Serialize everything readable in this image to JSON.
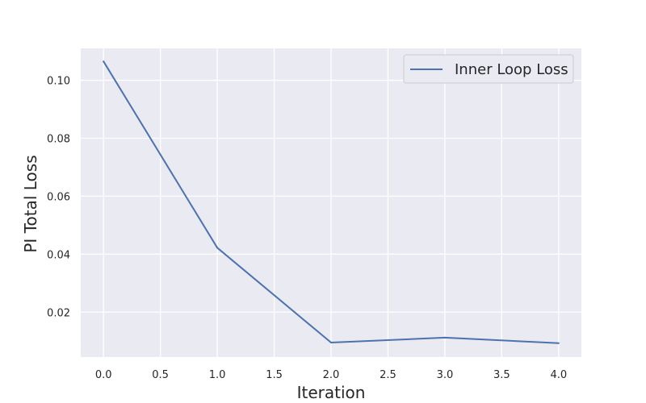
{
  "chart_data": {
    "type": "line",
    "title": "",
    "xlabel": "Iteration",
    "ylabel": "PI Total Loss",
    "xlim": [
      -0.2,
      4.2
    ],
    "ylim": [
      0.0045,
      0.111
    ],
    "x_ticks": [
      0.0,
      0.5,
      1.0,
      1.5,
      2.0,
      2.5,
      3.0,
      3.5,
      4.0
    ],
    "x_tick_labels": [
      "0.0",
      "0.5",
      "1.0",
      "1.5",
      "2.0",
      "2.5",
      "3.0",
      "3.5",
      "4.0"
    ],
    "y_ticks": [
      0.02,
      0.04,
      0.06,
      0.08,
      0.1
    ],
    "y_tick_labels": [
      "0.02",
      "0.04",
      "0.06",
      "0.08",
      "0.10"
    ],
    "grid": true,
    "legend_position": "top-right",
    "series": [
      {
        "name": "Inner Loop Loss",
        "color": "#4c72b0",
        "x": [
          0,
          1,
          2,
          3,
          4
        ],
        "y": [
          0.1065,
          0.0422,
          0.0095,
          0.0112,
          0.0093
        ]
      }
    ]
  },
  "colors": {
    "plot_background": "#eaeaf2",
    "grid": "#ffffff",
    "text": "#262626"
  }
}
